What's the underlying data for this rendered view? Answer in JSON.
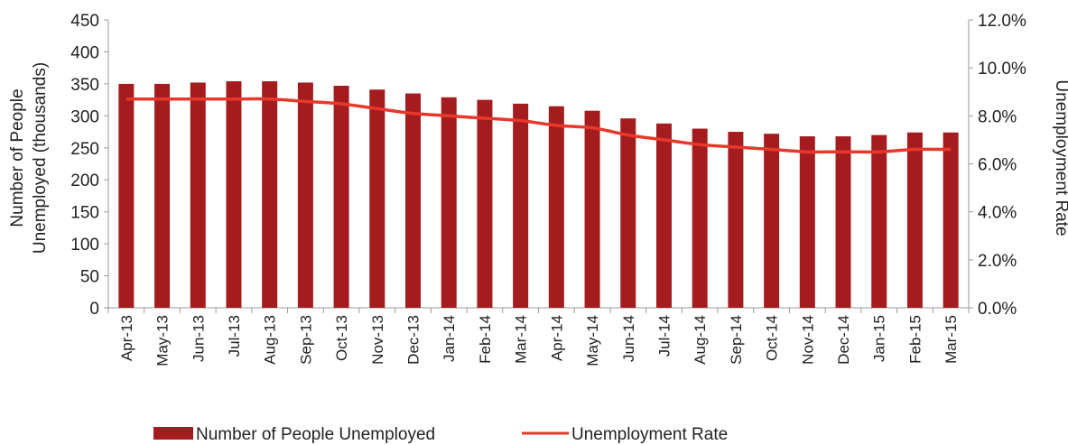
{
  "chart_data": {
    "type": "bar",
    "categories": [
      "Apr-13",
      "May-13",
      "Jun-13",
      "Jul-13",
      "Aug-13",
      "Sep-13",
      "Oct-13",
      "Nov-13",
      "Dec-13",
      "Jan-14",
      "Feb-14",
      "Mar-14",
      "Apr-14",
      "May-14",
      "Jun-14",
      "Jul-14",
      "Aug-14",
      "Sep-14",
      "Oct-14",
      "Nov-14",
      "Dec-14",
      "Jan-15",
      "Feb-15",
      "Mar-15"
    ],
    "series": [
      {
        "name": "Number of People Unemployed",
        "type": "bar",
        "axis": "left",
        "color": "#a51c1f",
        "values": [
          350,
          350,
          352,
          354,
          354,
          352,
          347,
          341,
          335,
          329,
          325,
          319,
          315,
          308,
          296,
          288,
          280,
          275,
          272,
          268,
          268,
          270,
          274,
          274
        ]
      },
      {
        "name": "Unemployment Rate",
        "type": "line",
        "axis": "right",
        "color": "#e8382b",
        "values": [
          8.7,
          8.7,
          8.7,
          8.7,
          8.7,
          8.6,
          8.5,
          8.3,
          8.1,
          8.0,
          7.9,
          7.8,
          7.6,
          7.5,
          7.2,
          7.0,
          6.8,
          6.7,
          6.6,
          6.5,
          6.5,
          6.5,
          6.6,
          6.6
        ]
      }
    ],
    "ylabel_left": [
      "Number of People",
      "Unemployed  (thousands)"
    ],
    "ylabel_right": "Unemployment  Rate",
    "ylim_left": [
      0,
      450
    ],
    "yticks_left": [
      "0",
      "50",
      "100",
      "150",
      "200",
      "250",
      "300",
      "350",
      "400",
      "450"
    ],
    "ylim_right": [
      0,
      12
    ],
    "yticks_right": [
      "0.0%",
      "2.0%",
      "4.0%",
      "6.0%",
      "8.0%",
      "10.0%",
      "12.0%"
    ],
    "grid": false,
    "legend_position": "bottom"
  }
}
